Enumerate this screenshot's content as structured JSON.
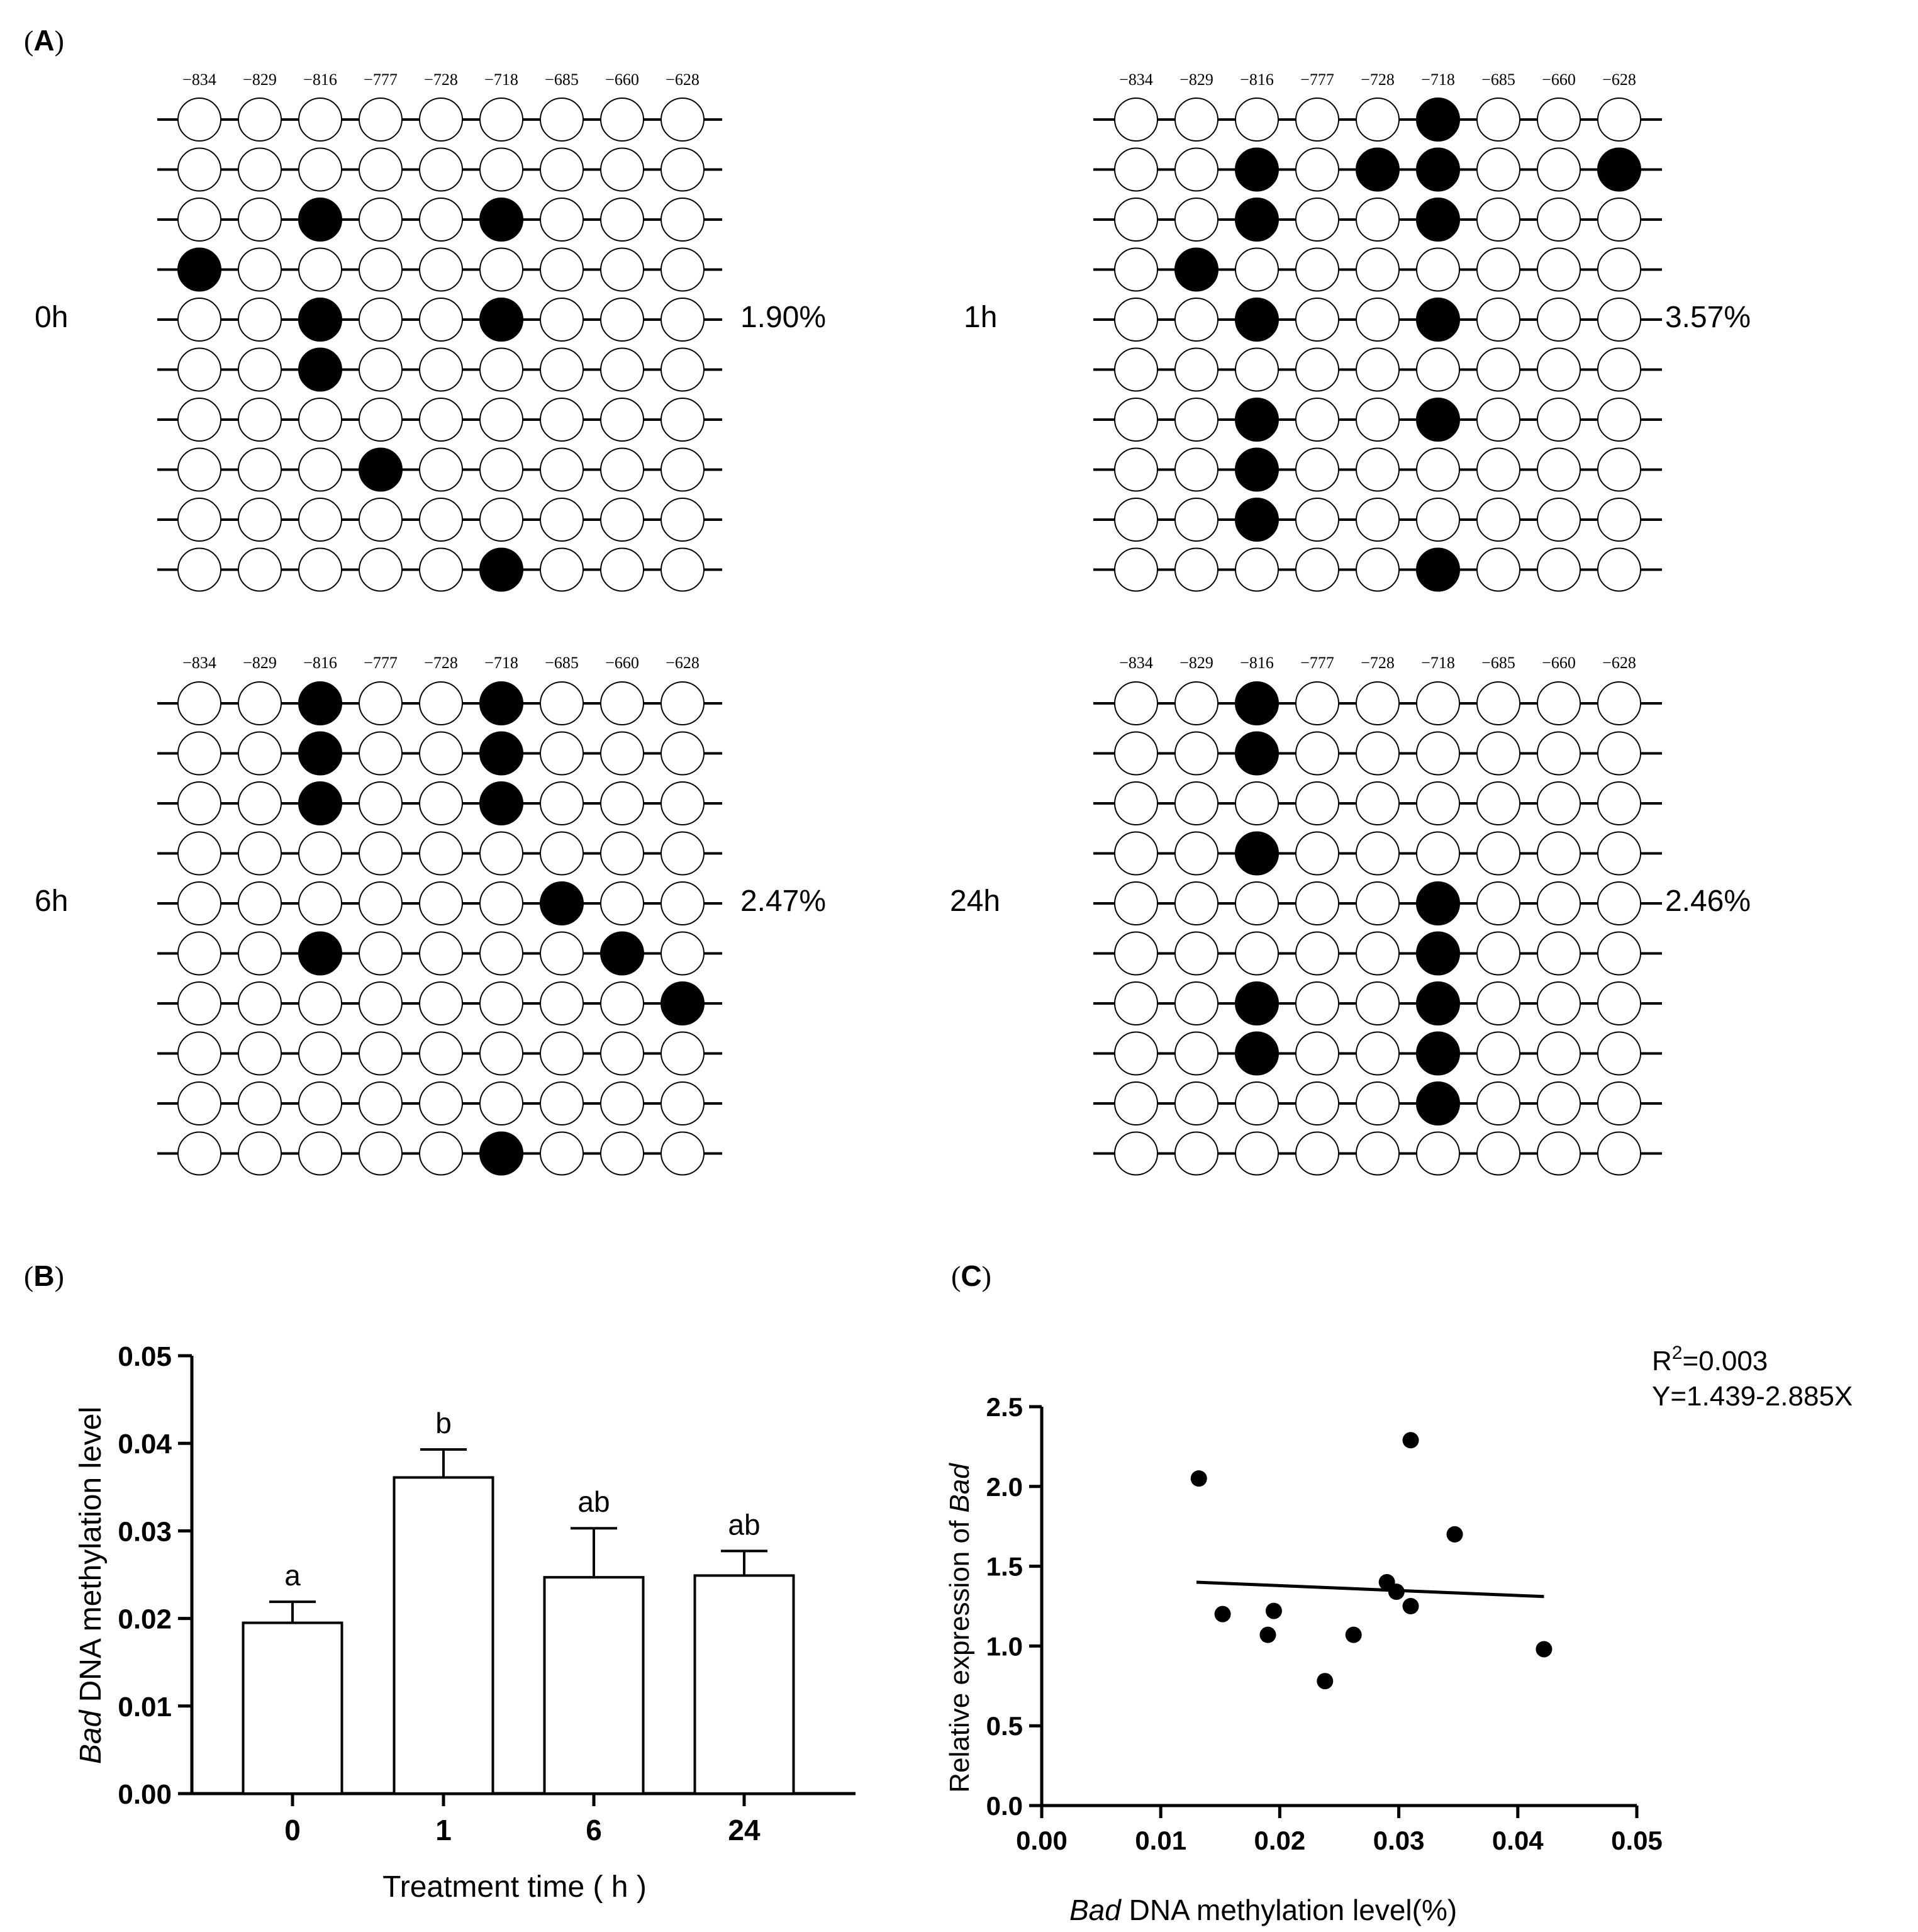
{
  "panel_labels": {
    "A": {
      "letter": "A",
      "open": "(",
      "close": ")"
    },
    "B": {
      "letter": "B",
      "open": "(",
      "close": ")"
    },
    "C": {
      "letter": "C",
      "open": "(",
      "close": ")"
    }
  },
  "chart_data": [
    {
      "type": "lollipop-methylation",
      "panel": "A",
      "cpg_positions": [
        "−834",
        "−829",
        "−816",
        "−777",
        "−728",
        "−718",
        "−685",
        "−660",
        "−628"
      ],
      "groups": [
        {
          "label": "0h",
          "percent": "1.90%",
          "methylated": [
            [
              2,
              2
            ],
            [
              2,
              5
            ],
            [
              3,
              0
            ],
            [
              4,
              2
            ],
            [
              4,
              5
            ],
            [
              5,
              2
            ],
            [
              7,
              3
            ],
            [
              9,
              5
            ]
          ]
        },
        {
          "label": "1h",
          "percent": "3.57%",
          "methylated": [
            [
              0,
              5
            ],
            [
              1,
              2
            ],
            [
              1,
              4
            ],
            [
              1,
              5
            ],
            [
              1,
              8
            ],
            [
              2,
              2
            ],
            [
              2,
              5
            ],
            [
              3,
              1
            ],
            [
              4,
              2
            ],
            [
              4,
              5
            ],
            [
              6,
              2
            ],
            [
              6,
              5
            ],
            [
              7,
              2
            ],
            [
              8,
              2
            ],
            [
              9,
              5
            ]
          ]
        },
        {
          "label": "6h",
          "percent": "2.47%",
          "methylated": [
            [
              0,
              2
            ],
            [
              0,
              5
            ],
            [
              1,
              2
            ],
            [
              1,
              5
            ],
            [
              2,
              2
            ],
            [
              2,
              5
            ],
            [
              4,
              6
            ],
            [
              5,
              2
            ],
            [
              5,
              7
            ],
            [
              6,
              8
            ],
            [
              9,
              5
            ]
          ]
        },
        {
          "label": "24h",
          "percent": "2.46%",
          "methylated": [
            [
              0,
              2
            ],
            [
              1,
              2
            ],
            [
              3,
              2
            ],
            [
              4,
              5
            ],
            [
              5,
              5
            ],
            [
              6,
              2
            ],
            [
              6,
              5
            ],
            [
              7,
              2
            ],
            [
              7,
              5
            ],
            [
              8,
              5
            ]
          ]
        }
      ],
      "rows_per_group": 10
    },
    {
      "type": "bar",
      "panel": "B",
      "categories": [
        "0",
        "1",
        "6",
        "24"
      ],
      "values": [
        0.0195,
        0.0361,
        0.0247,
        0.0249
      ],
      "errors": [
        0.0024,
        0.0032,
        0.0056,
        0.0028
      ],
      "significance": [
        "a",
        "b",
        "ab",
        "ab"
      ],
      "ylim": [
        0,
        0.05
      ],
      "yticks": [
        "0.00",
        "0.01",
        "0.02",
        "0.03",
        "0.04",
        "0.05"
      ],
      "xlabel": "Treatment time ( h )",
      "ylabel_italic": "Bad",
      "ylabel_rest": " DNA methylation level"
    },
    {
      "type": "scatter",
      "panel": "C",
      "points": [
        [
          0.0132,
          2.05
        ],
        [
          0.0152,
          1.2
        ],
        [
          0.019,
          1.07
        ],
        [
          0.0195,
          1.22
        ],
        [
          0.0238,
          0.78
        ],
        [
          0.0262,
          1.07
        ],
        [
          0.029,
          1.4
        ],
        [
          0.0298,
          1.34
        ],
        [
          0.031,
          1.25
        ],
        [
          0.031,
          2.29
        ],
        [
          0.0347,
          1.7
        ],
        [
          0.0422,
          0.98
        ]
      ],
      "fit_line": {
        "x": [
          0.013,
          0.0422
        ],
        "y": [
          1.4,
          1.31
        ]
      },
      "xlim": [
        0,
        0.05
      ],
      "ylim": [
        0,
        2.5
      ],
      "xticks": [
        "0.00",
        "0.01",
        "0.02",
        "0.03",
        "0.04",
        "0.05"
      ],
      "yticks": [
        "0.0",
        "0.5",
        "1.0",
        "1.5",
        "2.0",
        "2.5"
      ],
      "xlabel_italic": "Bad",
      "xlabel_rest": " DNA methylation level(%)",
      "ylabel_rest": "Relative expression of ",
      "ylabel_italic": "Bad",
      "r2_prefix": "R",
      "r2_sup": "2",
      "r2_value": "=0.003",
      "equation": "Y=1.439-2.885X"
    }
  ]
}
